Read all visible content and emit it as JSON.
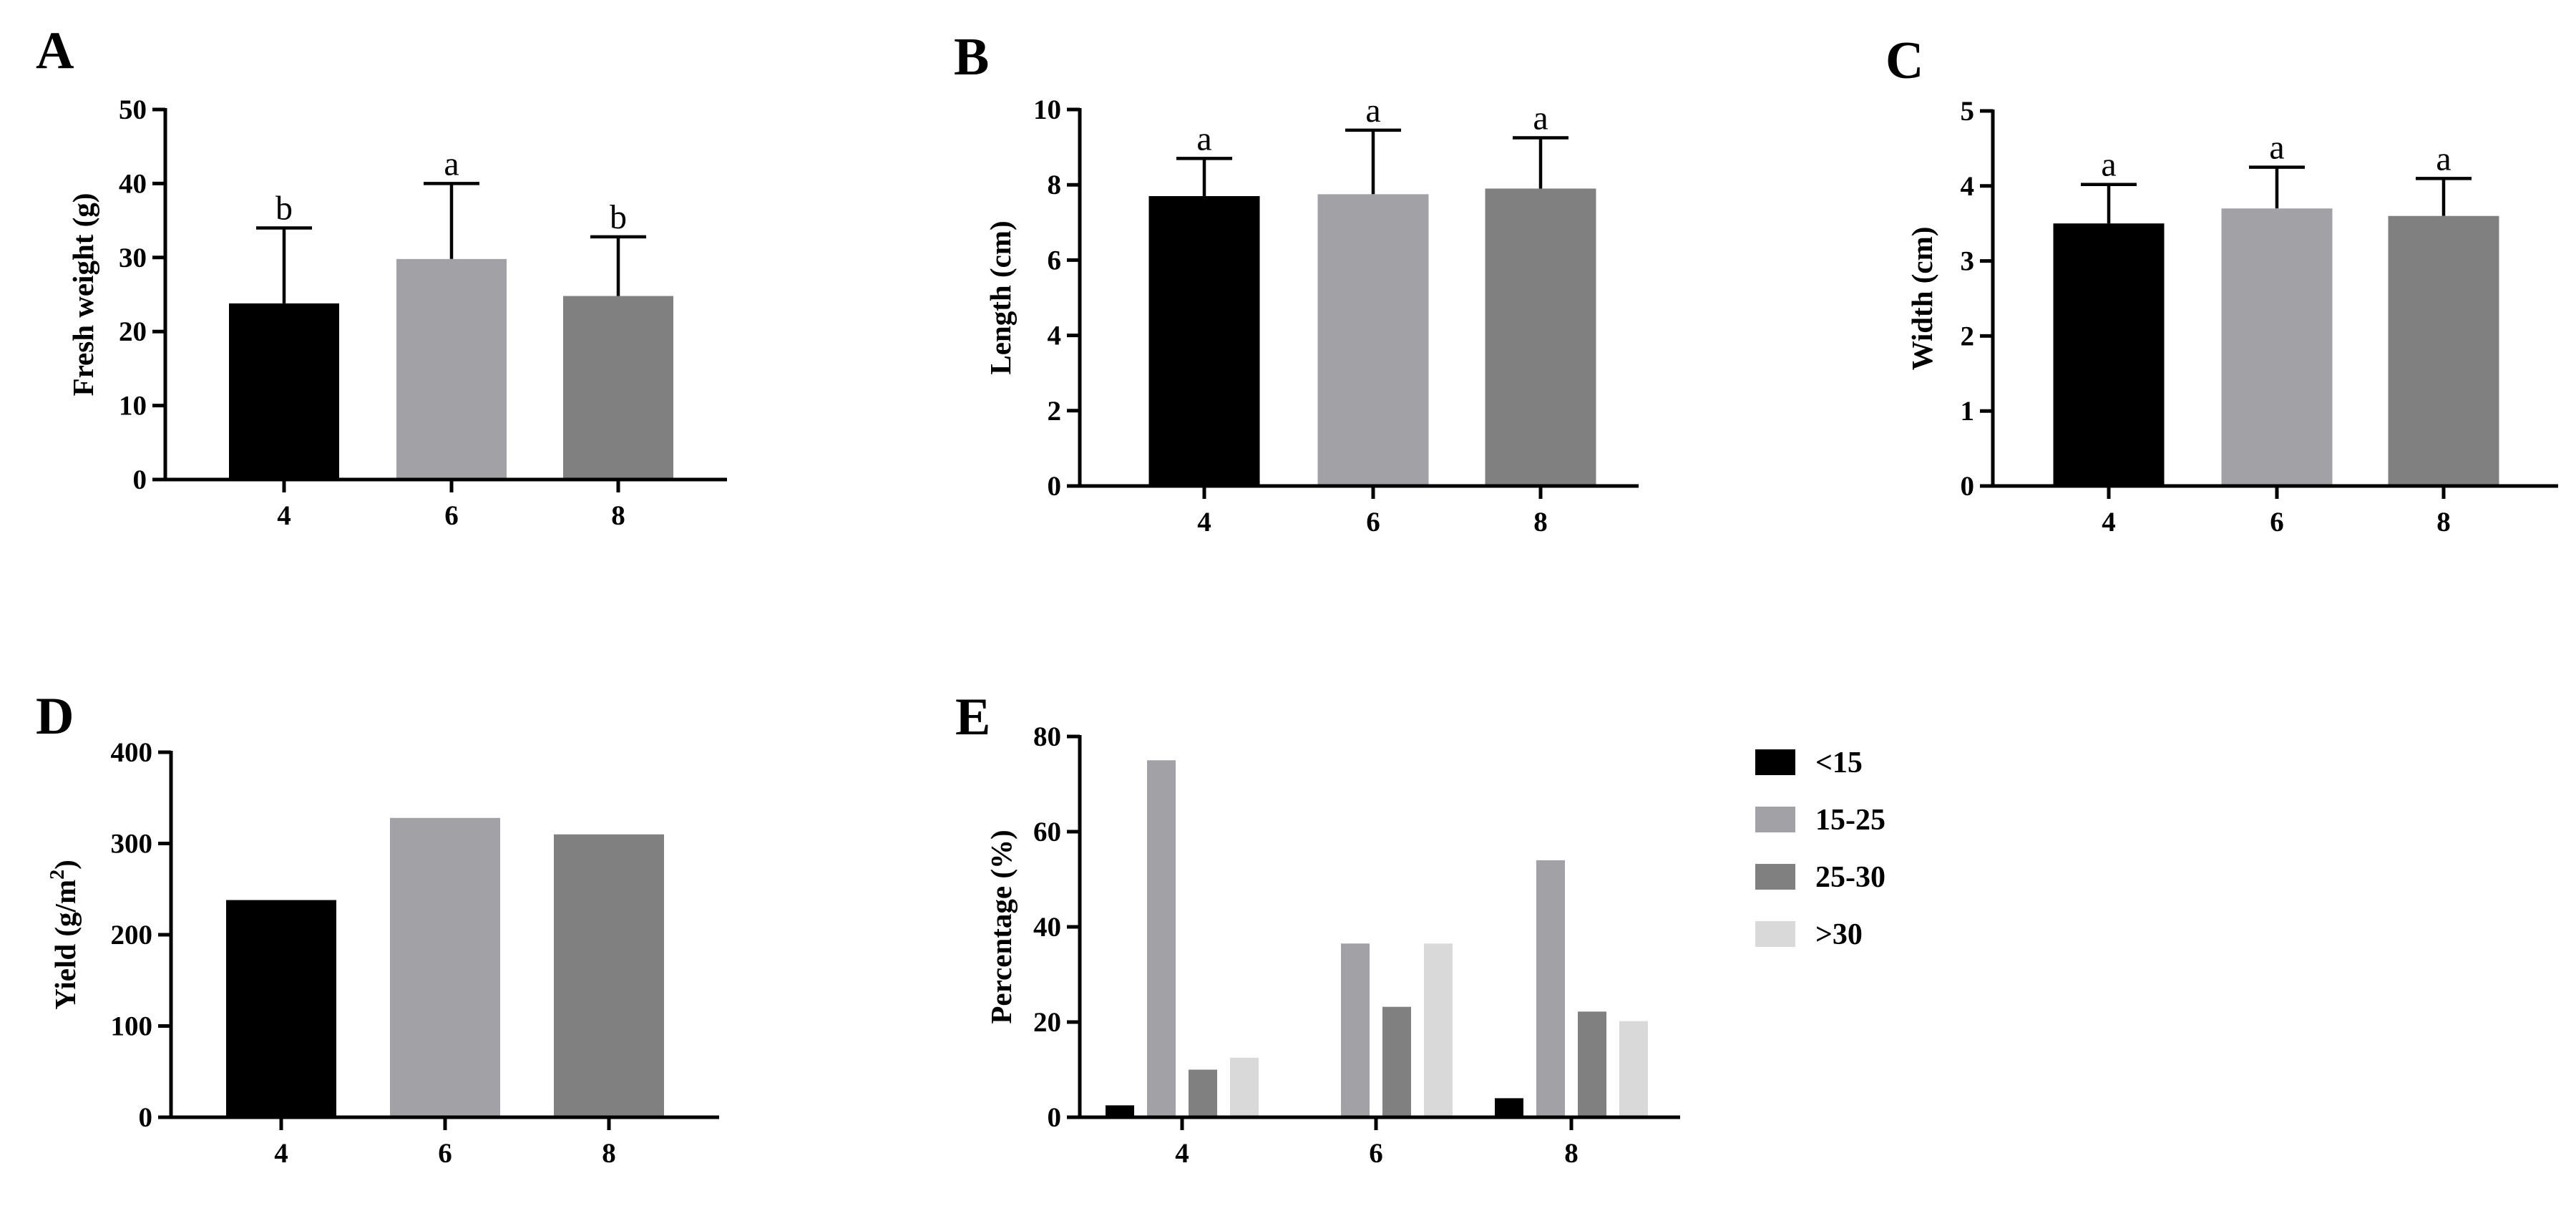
{
  "colors": {
    "black": "#000000",
    "lightgray": "#a2a1a6",
    "darkgray": "#808080",
    "palegray": "#d9d9d9"
  },
  "chart_data": [
    {
      "id": "A",
      "type": "bar",
      "panel_label": "A",
      "title": "",
      "xlabel": "",
      "ylabel": "Fresh weight (g)",
      "categories": [
        "4",
        "6",
        "8"
      ],
      "values": [
        23.8,
        29.8,
        24.8
      ],
      "errors": [
        10.2,
        10.2,
        8.0
      ],
      "significance": [
        "b",
        "a",
        "b"
      ],
      "bar_colors": [
        "black",
        "lightgray",
        "darkgray"
      ],
      "ylim": [
        0,
        50
      ],
      "yticks": [
        0,
        10,
        20,
        30,
        40,
        50
      ],
      "ytick_labels": [
        "0",
        "10",
        "20",
        "30",
        "40",
        "50"
      ]
    },
    {
      "id": "B",
      "type": "bar",
      "panel_label": "B",
      "title": "",
      "xlabel": "",
      "ylabel": "Length (cm)",
      "categories": [
        "4",
        "6",
        "8"
      ],
      "values": [
        7.7,
        7.75,
        7.9
      ],
      "errors": [
        1.0,
        1.7,
        1.35
      ],
      "significance": [
        "a",
        "a",
        "a"
      ],
      "bar_colors": [
        "black",
        "lightgray",
        "darkgray"
      ],
      "ylim": [
        0,
        10
      ],
      "yticks": [
        0,
        2,
        4,
        6,
        8,
        10
      ],
      "ytick_labels": [
        "0",
        "2",
        "4",
        "6",
        "8",
        "10"
      ]
    },
    {
      "id": "C",
      "type": "bar",
      "panel_label": "C",
      "title": "",
      "xlabel": "",
      "ylabel": "Width (cm)",
      "categories": [
        "4",
        "6",
        "8"
      ],
      "values": [
        3.5,
        3.7,
        3.6
      ],
      "errors": [
        0.52,
        0.55,
        0.5
      ],
      "significance": [
        "a",
        "a",
        "a"
      ],
      "bar_colors": [
        "black",
        "lightgray",
        "darkgray"
      ],
      "ylim": [
        0,
        5
      ],
      "yticks": [
        0,
        1,
        2,
        3,
        4,
        5
      ],
      "ytick_labels": [
        "0",
        "1",
        "2",
        "3",
        "4",
        "5"
      ]
    },
    {
      "id": "D",
      "type": "bar",
      "panel_label": "D",
      "title": "",
      "xlabel": "",
      "ylabel": "Yield (g/m2)",
      "ylabel_main": "Yield (g/m",
      "ylabel_sup": "2",
      "ylabel_end": ")",
      "categories": [
        "4",
        "6",
        "8"
      ],
      "values": [
        238,
        328,
        310
      ],
      "bar_colors": [
        "black",
        "lightgray",
        "darkgray"
      ],
      "ylim": [
        0,
        400
      ],
      "yticks": [
        0,
        100,
        200,
        300,
        400
      ],
      "ytick_labels": [
        "0",
        "100",
        "200",
        "300",
        "400"
      ]
    },
    {
      "id": "E",
      "type": "bar",
      "panel_label": "E",
      "title": "",
      "xlabel": "",
      "ylabel": "Percentage (%)",
      "categories": [
        "4",
        "6",
        "8"
      ],
      "series": [
        {
          "name": "<15",
          "color": "black",
          "values": [
            2.5,
            0,
            4
          ]
        },
        {
          "name": "15-25",
          "color": "lightgray",
          "values": [
            75,
            36.5,
            54
          ]
        },
        {
          "name": "25-30",
          "color": "darkgray",
          "values": [
            10,
            23.2,
            22.2
          ]
        },
        {
          "name": ">30",
          "color": "palegray",
          "values": [
            12.5,
            36.5,
            20.2
          ]
        }
      ],
      "ylim": [
        0,
        80
      ],
      "yticks": [
        0,
        20,
        40,
        60,
        80
      ],
      "ytick_labels": [
        "0",
        "20",
        "40",
        "60",
        "80"
      ],
      "legend_position": "right"
    }
  ]
}
